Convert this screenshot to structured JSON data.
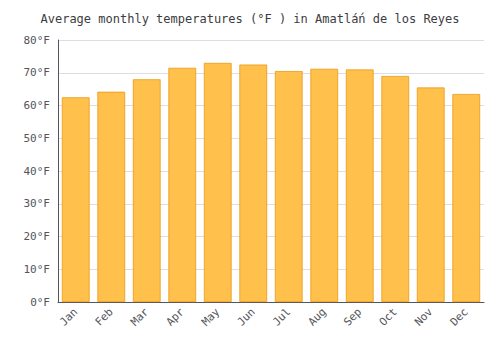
{
  "chart_data": {
    "type": "bar",
    "title": "Average monthly temperatures (°F ) in Amatlá́n de los Reyes",
    "categories": [
      "Jan",
      "Feb",
      "Mar",
      "Apr",
      "May",
      "Jun",
      "Jul",
      "Aug",
      "Sep",
      "Oct",
      "Nov",
      "Dec"
    ],
    "values": [
      62.5,
      64.2,
      68.0,
      71.5,
      73.0,
      72.5,
      70.5,
      71.2,
      71.0,
      69.0,
      65.5,
      63.5
    ],
    "color": "#FFC04C",
    "ylim": [
      0,
      80
    ],
    "yticks": [
      {
        "value": 0,
        "label": "0°F"
      },
      {
        "value": 10,
        "label": "10°F"
      },
      {
        "value": 20,
        "label": "20°F"
      },
      {
        "value": 30,
        "label": "30°F"
      },
      {
        "value": 40,
        "label": "40°F"
      },
      {
        "value": 50,
        "label": "50°F"
      },
      {
        "value": 60,
        "label": "60°F"
      },
      {
        "value": 70,
        "label": "70°F"
      },
      {
        "value": 80,
        "label": "80°F"
      }
    ],
    "grid": true
  }
}
